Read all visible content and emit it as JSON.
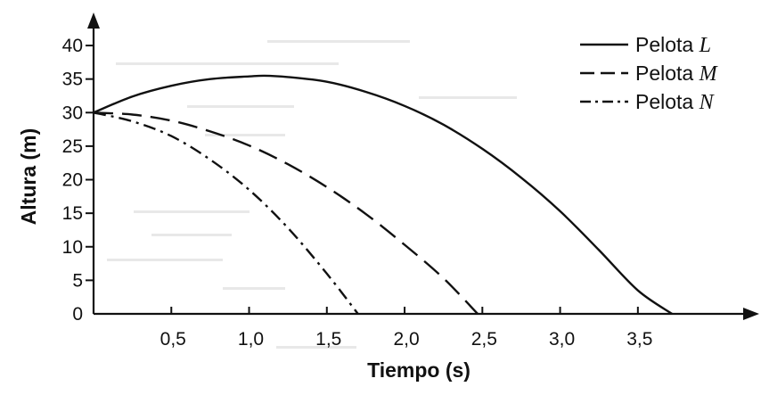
{
  "chart_data": {
    "type": "line",
    "xlabel": "Tiempo (s)",
    "ylabel": "Altura (m)",
    "xlim": [
      0,
      4.2
    ],
    "ylim": [
      0,
      42
    ],
    "x_ticks": [
      {
        "value": 0.5,
        "label": "0,5"
      },
      {
        "value": 1.0,
        "label": "1,0"
      },
      {
        "value": 1.5,
        "label": "1,5"
      },
      {
        "value": 2.0,
        "label": "2,0"
      },
      {
        "value": 2.5,
        "label": "2,5"
      },
      {
        "value": 3.0,
        "label": "3,0"
      },
      {
        "value": 3.5,
        "label": "3,5"
      }
    ],
    "y_ticks": [
      {
        "value": 0,
        "label": "0"
      },
      {
        "value": 5,
        "label": "5"
      },
      {
        "value": 10,
        "label": "10"
      },
      {
        "value": 15,
        "label": "15"
      },
      {
        "value": 20,
        "label": "20"
      },
      {
        "value": 25,
        "label": "25"
      },
      {
        "value": 30,
        "label": "30"
      },
      {
        "value": 35,
        "label": "35"
      },
      {
        "value": 40,
        "label": "40"
      }
    ],
    "grid": false,
    "legend_position": "top-right",
    "series": [
      {
        "name_prefix": "Pelota",
        "name_var": "L",
        "dash": "solid",
        "color": "#111111",
        "x": [
          0,
          0.25,
          0.5,
          0.75,
          1.0,
          1.1,
          1.25,
          1.5,
          1.75,
          2.0,
          2.25,
          2.5,
          2.75,
          3.0,
          3.25,
          3.5,
          3.72
        ],
        "y": [
          30,
          32.4,
          34.0,
          35.0,
          35.4,
          35.5,
          35.3,
          34.6,
          33.1,
          31.0,
          28.2,
          24.6,
          20.3,
          15.3,
          9.5,
          3.5,
          0
        ]
      },
      {
        "name_prefix": "Pelota",
        "name_var": "M",
        "dash": "dashed",
        "color": "#111111",
        "x": [
          0,
          0.25,
          0.5,
          0.75,
          1.0,
          1.25,
          1.5,
          1.75,
          2.0,
          2.25,
          2.47
        ],
        "y": [
          30,
          29.7,
          28.8,
          27.2,
          25.1,
          22.3,
          18.9,
          14.9,
          10.3,
          5.3,
          0
        ]
      },
      {
        "name_prefix": "Pelota",
        "name_var": "N",
        "dash": "dash-dot",
        "color": "#111111",
        "x": [
          0,
          0.25,
          0.5,
          0.75,
          1.0,
          1.25,
          1.5,
          1.7
        ],
        "y": [
          30,
          28.7,
          26.5,
          23.0,
          18.5,
          12.8,
          6.0,
          0
        ]
      }
    ]
  }
}
